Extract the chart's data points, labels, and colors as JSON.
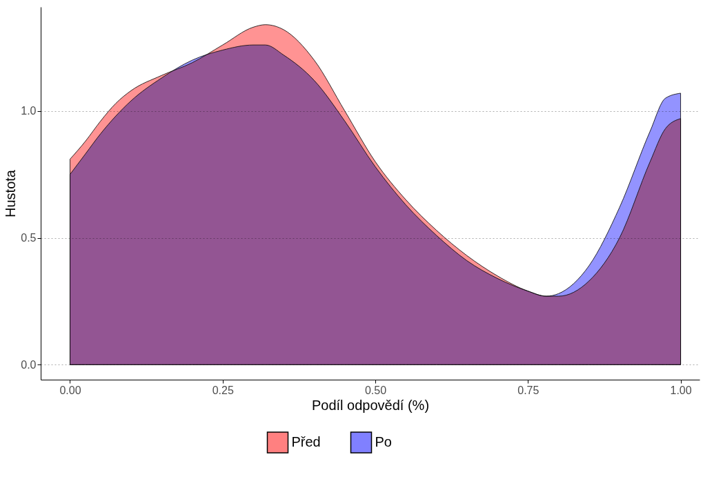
{
  "chart_data": {
    "type": "area",
    "xlabel": "Podíl odpovědí (%)",
    "ylabel": "Hustota",
    "x": [
      0,
      0.025,
      0.05,
      0.075,
      0.1,
      0.15,
      0.2,
      0.25,
      0.3,
      0.32,
      0.35,
      0.4,
      0.45,
      0.5,
      0.55,
      0.6,
      0.65,
      0.7,
      0.75,
      0.78,
      0.8,
      0.85,
      0.9,
      0.95,
      0.975,
      1.0
    ],
    "series": [
      {
        "name": "Před",
        "color": "#ff8080",
        "values": [
          0.81,
          0.88,
          0.96,
          1.03,
          1.08,
          1.14,
          1.19,
          1.26,
          1.33,
          1.34,
          1.32,
          1.2,
          1.0,
          0.8,
          0.65,
          0.53,
          0.43,
          0.35,
          0.29,
          0.27,
          0.27,
          0.33,
          0.5,
          0.8,
          0.93,
          0.97
        ]
      },
      {
        "name": "Po",
        "color": "#8080ff",
        "values": [
          0.75,
          0.83,
          0.91,
          0.98,
          1.04,
          1.13,
          1.2,
          1.24,
          1.26,
          1.26,
          1.22,
          1.12,
          0.96,
          0.78,
          0.63,
          0.51,
          0.41,
          0.34,
          0.29,
          0.27,
          0.28,
          0.39,
          0.62,
          0.92,
          1.05,
          1.07
        ]
      }
    ],
    "xlim": [
      -0.048,
      1.031
    ],
    "xticks": [
      {
        "value": 0,
        "label": "0.00"
      },
      {
        "value": 0.25,
        "label": "0.25"
      },
      {
        "value": 0.5,
        "label": "0.50"
      },
      {
        "value": 0.75,
        "label": "0.75"
      },
      {
        "value": 1,
        "label": "1.00"
      }
    ],
    "ylim": [
      -0.059,
      1.41
    ],
    "yticks": [
      {
        "value": 0,
        "label": "0.0"
      },
      {
        "value": 0.5,
        "label": "0.5"
      },
      {
        "value": 1,
        "label": "1.0"
      }
    ],
    "grid": "y",
    "legend": "bottom"
  }
}
